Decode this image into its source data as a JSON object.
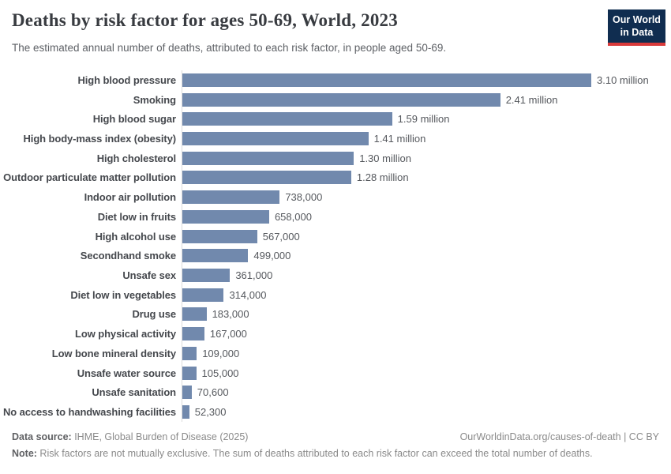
{
  "header": {
    "title": "Deaths by risk factor for ages 50-69, World, 2023",
    "subtitle": "The estimated annual number of deaths, attributed to each risk factor, in people aged 50-69.",
    "logo": {
      "line1": "Our World",
      "line2": "in Data",
      "bg": "#102d50",
      "accent": "#d93a3a"
    }
  },
  "chart_data": {
    "type": "bar",
    "orientation": "horizontal",
    "title": "Deaths by risk factor for ages 50-69, World, 2023",
    "xlabel": "",
    "ylabel": "",
    "xlim": [
      0,
      3100000
    ],
    "grid": false,
    "bar_color": "#7189ad",
    "axis_line_color": "#dcdcdc",
    "categories": [
      "High blood pressure",
      "Smoking",
      "High blood sugar",
      "High body-mass index (obesity)",
      "High cholesterol",
      "Outdoor particulate matter pollution",
      "Indoor air pollution",
      "Diet low in fruits",
      "High alcohol use",
      "Secondhand smoke",
      "Unsafe sex",
      "Diet low in vegetables",
      "Drug use",
      "Low physical activity",
      "Low bone mineral density",
      "Unsafe water source",
      "Unsafe sanitation",
      "No access to handwashing facilities"
    ],
    "values": [
      3100000,
      2410000,
      1590000,
      1410000,
      1300000,
      1280000,
      738000,
      658000,
      567000,
      499000,
      361000,
      314000,
      183000,
      167000,
      109000,
      105000,
      70600,
      52300
    ],
    "value_labels": [
      "3.10 million",
      "2.41 million",
      "1.59 million",
      "1.41 million",
      "1.30 million",
      "1.28 million",
      "738,000",
      "658,000",
      "567,000",
      "499,000",
      "361,000",
      "314,000",
      "183,000",
      "167,000",
      "109,000",
      "105,000",
      "70,600",
      "52,300"
    ]
  },
  "footer": {
    "source_label": "Data source:",
    "source_text": " IHME, Global Burden of Disease (2025)",
    "rights": "OurWorldinData.org/causes-of-death | CC BY",
    "note_label": "Note:",
    "note_text": " Risk factors are not mutually exclusive. The sum of deaths attributed to each risk factor can exceed the total number of deaths."
  }
}
